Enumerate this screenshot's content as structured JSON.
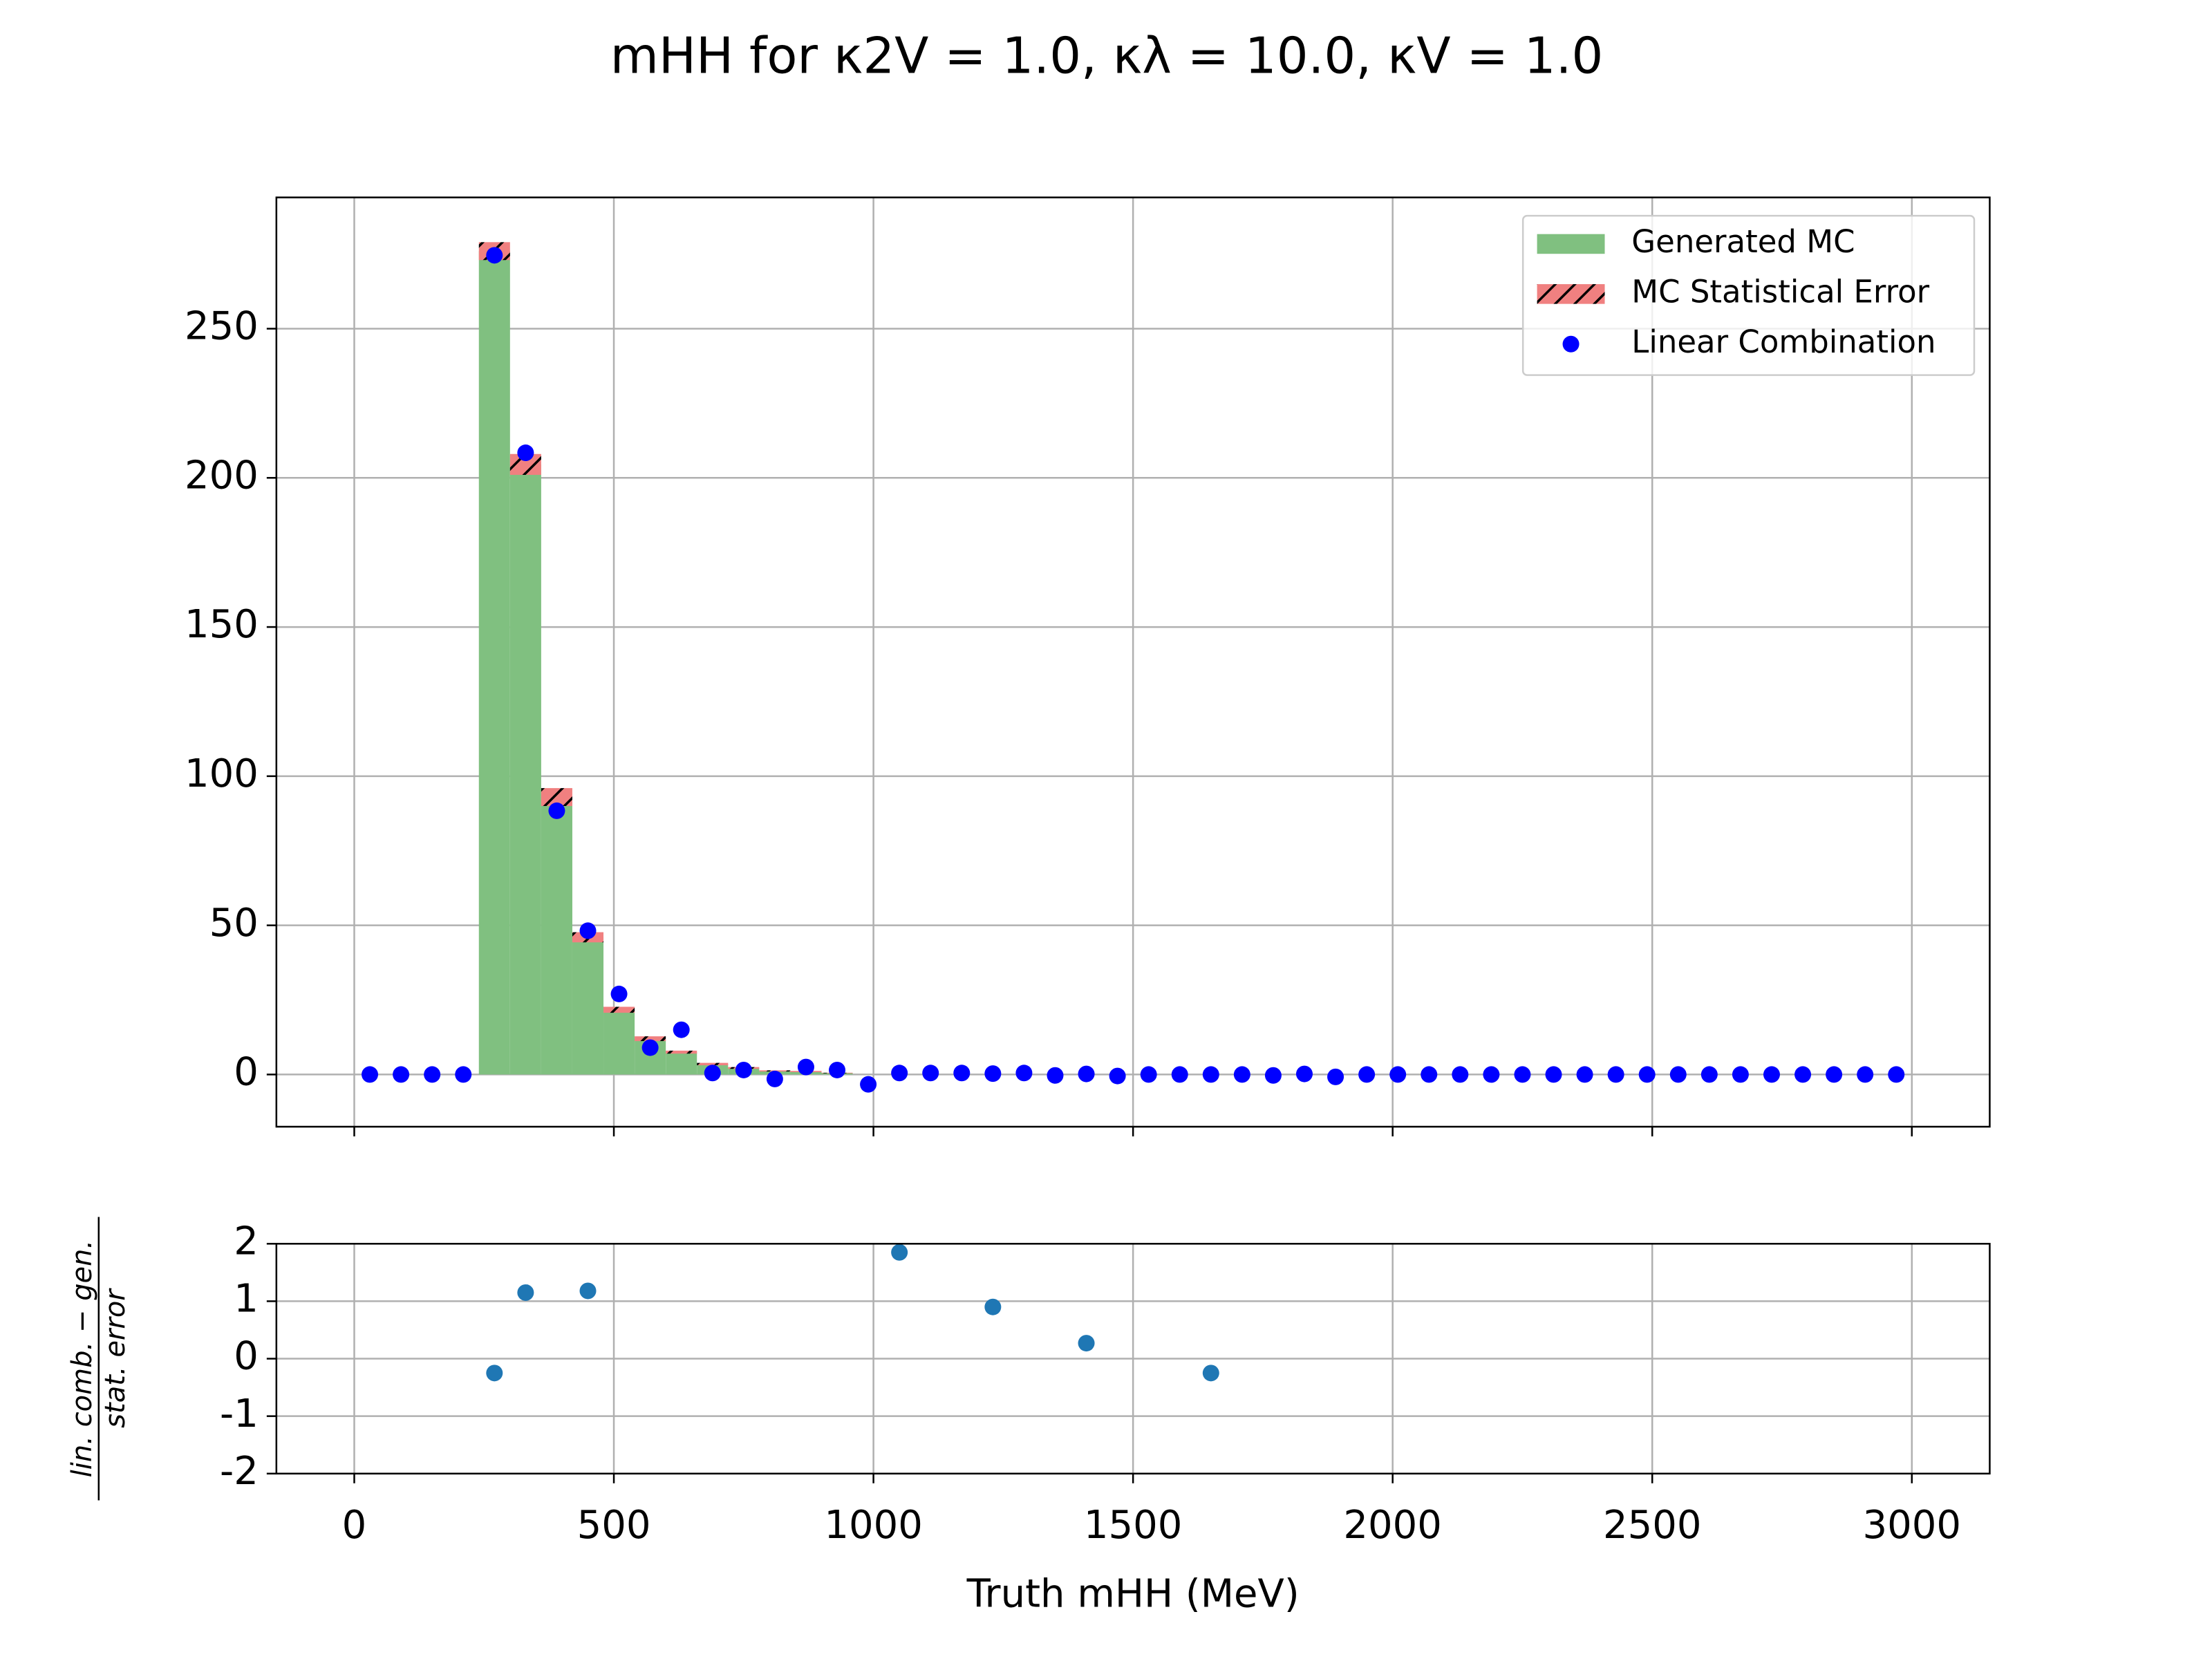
{
  "chart_data": [
    {
      "type": "histogram",
      "title": "mHH for κ2V = 1.0, κλ = 10.0, κV = 1.0",
      "bins": [
        0,
        60,
        120,
        180,
        240,
        300,
        360,
        420,
        480,
        540,
        600,
        660,
        720,
        780,
        840,
        900,
        960,
        1020,
        1080,
        1140,
        1200,
        1260,
        1320,
        1380,
        1440,
        1500,
        1560,
        1620,
        1680,
        1740,
        1800,
        1860,
        1920,
        1980,
        2040,
        2100,
        2160,
        2220,
        2280,
        2340,
        2400,
        2460,
        2520,
        2580,
        2640,
        2700,
        2760,
        2820,
        2880,
        2940,
        3000
      ],
      "series": [
        {
          "name": "Generated MC",
          "color": "#80c080",
          "values": [
            0,
            0,
            0,
            0,
            276,
            204.5,
            93,
            46,
            21.7,
            12,
            7.5,
            3.5,
            2.2,
            1.2,
            1,
            0.5,
            0,
            0,
            0,
            0,
            0,
            0,
            0,
            0,
            0,
            0,
            0,
            0,
            0,
            0,
            0,
            0,
            0,
            0,
            0,
            0,
            0,
            0,
            0,
            0,
            0,
            0,
            0,
            0,
            0,
            0,
            0,
            0,
            0,
            0
          ]
        },
        {
          "name": "MC Statistical Error",
          "color": "#f08080",
          "hatch": "#000000",
          "values": [
            0,
            0,
            0,
            0,
            3,
            3.5,
            3,
            1.7,
            1,
            0.8,
            0.5,
            0.4,
            0.3,
            0.2,
            0.2,
            0.1,
            0,
            0,
            0,
            0,
            0,
            0,
            0,
            0,
            0,
            0,
            0,
            0,
            0,
            0,
            0,
            0,
            0,
            0,
            0,
            0,
            0,
            0,
            0,
            0,
            0,
            0,
            0,
            0,
            0,
            0,
            0,
            0,
            0,
            0
          ]
        },
        {
          "name": "Linear Combination",
          "color": "#0000ff",
          "type": "scatter",
          "values": [
            0,
            0,
            0,
            0,
            274.6,
            208.4,
            88.4,
            48.2,
            27,
            9,
            15,
            0.5,
            1.5,
            -1.5,
            2.5,
            1.5,
            -3.3,
            0.5,
            0.5,
            0.5,
            0.3,
            0.5,
            -0.3,
            0.2,
            -0.5,
            0,
            0,
            0,
            0,
            -0.3,
            0.2,
            -0.8,
            0,
            0,
            0,
            0,
            0,
            0,
            0,
            0,
            0,
            0,
            0,
            0,
            0,
            0,
            0,
            0,
            0,
            0
          ]
        }
      ],
      "xlim": [
        -150,
        3150
      ],
      "xticks": [
        0,
        500,
        1000,
        1500,
        2000,
        2500,
        3000
      ],
      "ylim": [
        -17.5,
        294
      ],
      "yticks": [
        0,
        50,
        100,
        150,
        200,
        250
      ],
      "grid": true,
      "legend": "upper right"
    },
    {
      "type": "scatter",
      "x": [
        270,
        330,
        450,
        1050,
        1230,
        1410,
        1650
      ],
      "values": [
        -0.25,
        1.15,
        1.18,
        1.85,
        0.9,
        0.27,
        -0.25
      ],
      "color": "#1f77b4",
      "xlim": [
        -150,
        3150
      ],
      "xticks": [
        0,
        500,
        1000,
        1500,
        2000,
        2500,
        3000
      ],
      "ylim": [
        -2,
        2
      ],
      "yticks": [
        -2,
        -1,
        0,
        1,
        2
      ],
      "xlabel": "Truth mHH (MeV)",
      "ylabel": {
        "numerator": "lin. comb. − gen.",
        "denominator": "stat. error"
      },
      "grid": true
    }
  ]
}
